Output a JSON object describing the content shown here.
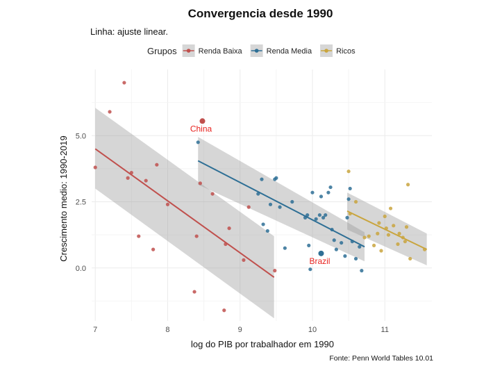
{
  "chart_data": {
    "type": "scatter",
    "title": "Convergencia desde 1990",
    "subtitle": "Linha: ajuste linear.",
    "xlabel": "log do PIB por trabalhador em 1990",
    "ylabel": "Crescimento medio: 1990-2019",
    "caption": "Fonte: Penn World Tables 10.01",
    "xlim": [
      6.95,
      11.65
    ],
    "ylim": [
      -2.0,
      7.5
    ],
    "x_ticks": [
      7,
      8,
      9,
      10,
      11
    ],
    "y_ticks": [
      0.0,
      2.5,
      5.0
    ],
    "y_tick_labels": [
      "0.0",
      "2.5",
      "5.0"
    ],
    "grid": true,
    "legend": {
      "title": "Grupos",
      "position": "top"
    },
    "series": [
      {
        "name": "Renda Baixa",
        "color": "#c0504d",
        "points": [
          [
            7.0,
            3.8
          ],
          [
            7.2,
            5.9
          ],
          [
            7.4,
            7.0
          ],
          [
            7.45,
            3.4
          ],
          [
            7.5,
            3.6
          ],
          [
            7.6,
            1.2
          ],
          [
            7.7,
            3.3
          ],
          [
            7.8,
            0.7
          ],
          [
            7.85,
            3.9
          ],
          [
            8.0,
            2.4
          ],
          [
            8.37,
            -0.9
          ],
          [
            8.4,
            1.2
          ],
          [
            8.45,
            3.2
          ],
          [
            8.62,
            2.8
          ],
          [
            8.78,
            -1.6
          ],
          [
            8.8,
            0.9
          ],
          [
            8.85,
            1.5
          ],
          [
            9.05,
            0.3
          ],
          [
            9.12,
            2.3
          ],
          [
            9.48,
            -0.1
          ]
        ],
        "fit": {
          "x": [
            7.0,
            9.47
          ],
          "y": [
            4.5,
            -0.35
          ],
          "ci_low": [
            3.0,
            -1.9
          ],
          "ci_high": [
            6.05,
            1.2
          ]
        }
      },
      {
        "name": "Renda Media",
        "color": "#2e6f95",
        "points": [
          [
            8.42,
            4.75
          ],
          [
            9.25,
            2.8
          ],
          [
            9.3,
            3.35
          ],
          [
            9.32,
            1.65
          ],
          [
            9.38,
            1.4
          ],
          [
            9.42,
            2.4
          ],
          [
            9.48,
            3.35
          ],
          [
            9.5,
            3.4
          ],
          [
            9.55,
            2.3
          ],
          [
            9.62,
            0.75
          ],
          [
            9.72,
            2.5
          ],
          [
            9.9,
            1.9
          ],
          [
            9.93,
            2.0
          ],
          [
            9.95,
            0.85
          ],
          [
            9.97,
            -0.05
          ],
          [
            10.0,
            2.85
          ],
          [
            10.05,
            1.85
          ],
          [
            10.1,
            2.0
          ],
          [
            10.12,
            2.7
          ],
          [
            10.15,
            1.9
          ],
          [
            10.18,
            2.0
          ],
          [
            10.22,
            2.85
          ],
          [
            10.25,
            3.05
          ],
          [
            10.27,
            1.45
          ],
          [
            10.3,
            1.05
          ],
          [
            10.33,
            0.7
          ],
          [
            10.4,
            0.95
          ],
          [
            10.45,
            0.45
          ],
          [
            10.48,
            1.9
          ],
          [
            10.5,
            2.6
          ],
          [
            10.52,
            3.0
          ],
          [
            10.55,
            1.0
          ],
          [
            10.6,
            0.35
          ],
          [
            10.65,
            0.8
          ],
          [
            10.68,
            -0.1
          ]
        ],
        "fit": {
          "x": [
            8.42,
            10.72
          ],
          "y": [
            4.05,
            0.8
          ],
          "ci_low": [
            3.15,
            0.25
          ],
          "ci_high": [
            4.95,
            1.35
          ]
        }
      },
      {
        "name": "Ricos",
        "color": "#c9a53e",
        "points": [
          [
            10.5,
            3.65
          ],
          [
            10.52,
            2.05
          ],
          [
            10.6,
            2.5
          ],
          [
            10.72,
            1.15
          ],
          [
            10.78,
            1.2
          ],
          [
            10.85,
            0.85
          ],
          [
            10.9,
            1.3
          ],
          [
            10.92,
            1.7
          ],
          [
            10.95,
            0.65
          ],
          [
            11.0,
            1.95
          ],
          [
            11.02,
            1.5
          ],
          [
            11.05,
            1.25
          ],
          [
            11.08,
            2.25
          ],
          [
            11.12,
            1.6
          ],
          [
            11.18,
            0.9
          ],
          [
            11.2,
            1.3
          ],
          [
            11.25,
            1.15
          ],
          [
            11.28,
            1.0
          ],
          [
            11.3,
            1.55
          ],
          [
            11.32,
            3.15
          ],
          [
            11.35,
            0.35
          ],
          [
            11.55,
            0.7
          ]
        ],
        "fit": {
          "x": [
            10.48,
            11.58
          ],
          "y": [
            2.15,
            0.7
          ],
          "ci_low": [
            1.45,
            0.1
          ],
          "ci_high": [
            2.85,
            1.3
          ]
        }
      }
    ],
    "highlights": [
      {
        "label": "China",
        "x": 8.48,
        "y": 5.55,
        "series": "Renda Baixa",
        "color": "#e8231f"
      },
      {
        "label": "Brazil",
        "x": 10.12,
        "y": 0.55,
        "series": "Renda Media",
        "color": "#e8231f"
      }
    ]
  }
}
